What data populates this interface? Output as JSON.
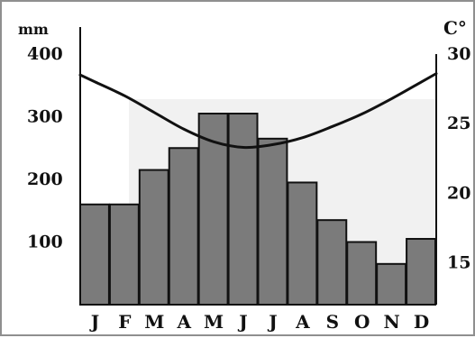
{
  "chart_data": {
    "type": "bar",
    "categories": [
      "J",
      "F",
      "M",
      "A",
      "M",
      "J",
      "J",
      "A",
      "S",
      "O",
      "N",
      "D"
    ],
    "series": [
      {
        "type": "bar",
        "axis": "left",
        "values": [
          160,
          160,
          215,
          250,
          305,
          305,
          265,
          195,
          135,
          100,
          65,
          105
        ]
      },
      {
        "type": "line",
        "axis": "right",
        "values": [
          28.0,
          27.0,
          25.8,
          24.6,
          23.7,
          23.3,
          23.5,
          24.0,
          24.8,
          25.7,
          26.8,
          28.0
        ]
      }
    ],
    "left_axis": {
      "unit": "mm",
      "ticks": [
        100,
        200,
        300,
        400
      ],
      "range": [
        0,
        400
      ]
    },
    "right_axis": {
      "unit": "C°",
      "ticks": [
        15,
        20,
        25,
        30
      ],
      "range": [
        12,
        30
      ]
    },
    "colors": {
      "bar_fill": "#7b7b7b",
      "bar_stroke": "#111111",
      "line": "#111111",
      "band": "#f1f1f1"
    }
  }
}
